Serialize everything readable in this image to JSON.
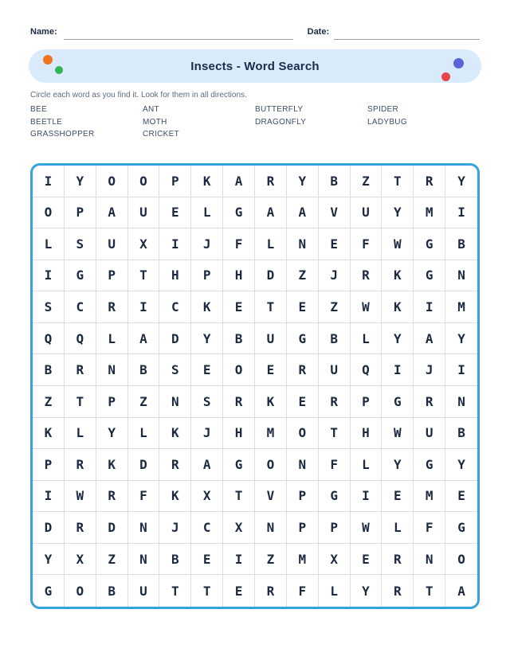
{
  "header": {
    "name_label": "Name:",
    "date_label": "Date:"
  },
  "banner": {
    "title": "Insects - Word Search",
    "background": "#d9eafb",
    "title_color": "#1c2b4a",
    "dots": [
      {
        "name": "orange-dot",
        "color": "#f0751f"
      },
      {
        "name": "green-dot",
        "color": "#2fb457"
      },
      {
        "name": "blue-dot",
        "color": "#5b63d9"
      },
      {
        "name": "red-dot",
        "color": "#e94449"
      }
    ]
  },
  "instructions": "Circle each word as you find it. Look for them in all directions.",
  "word_list": {
    "columns": [
      [
        "BEE",
        "BEETLE",
        "GRASSHOPPER"
      ],
      [
        "ANT",
        "MOTH",
        "CRICKET"
      ],
      [
        "BUTTERFLY",
        "DRAGONFLY"
      ],
      [
        "SPIDER",
        "LADYBUG"
      ]
    ]
  },
  "puzzle": {
    "rows": 14,
    "cols": 14,
    "border_color": "#36a3da",
    "cell_line_color": "#d9dfe5",
    "letter_color": "#1c2940",
    "grid": [
      "IYOOPKARYBZTRY",
      "OPAUELGAAVUYMI",
      "LSUXIJFLNEFWGB",
      "IGPTHPHDZJRKGN",
      "SCRICKETEZWKIM",
      "QQLADYBUGBLYAY",
      "BRNBSEOERUQIJI",
      "ZTPZNSRKERPGRN",
      "KLYLKJHMOTHWUB",
      "PRKDRAGONFLYGY",
      "IWRFKXTVPGIEME",
      "DRDNJCXNPPWLFG",
      "YXZNBEIZMXERNO",
      "GOBUTTERFLYRTA"
    ]
  }
}
